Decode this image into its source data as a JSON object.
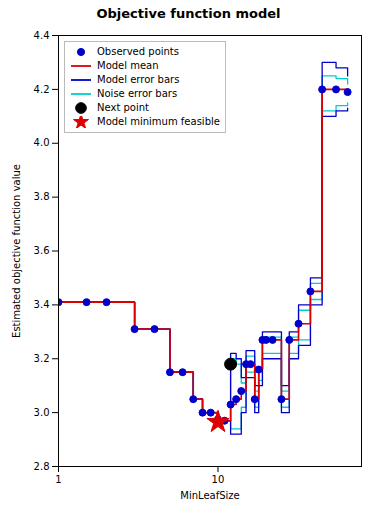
{
  "chart_data": {
    "type": "line",
    "title": "Objective function model",
    "xlabel": "MinLeafSize",
    "ylabel": "Estimated objective function value",
    "log": "x",
    "xlim": [
      1,
      79.43282347242815
    ],
    "xticks": [
      1,
      10
    ],
    "ylim": [
      2.8,
      4.4
    ],
    "yticks": [
      2.8,
      {
        "value": 3.0,
        "label": "3.0"
      },
      3.2,
      3.4,
      3.6,
      3.8,
      {
        "value": 4.0,
        "label": "4.0"
      },
      4.2,
      4.4
    ],
    "grid": false,
    "legend": "upper left",
    "series": [
      {
        "name": "Observed points",
        "type": "scatter",
        "marker": "circle",
        "color": "#0000cc",
        "x": [
          1,
          1.5,
          2,
          3,
          4,
          5,
          6,
          7,
          8,
          9,
          10,
          11,
          12,
          13,
          14,
          15,
          16,
          17,
          18,
          19,
          20,
          22,
          25,
          28,
          32,
          38,
          45,
          55,
          65
        ],
        "values": [
          3.41,
          3.41,
          3.41,
          3.31,
          3.31,
          3.15,
          3.15,
          3.05,
          3.0,
          3.0,
          2.975,
          2.97,
          3.03,
          3.05,
          3.08,
          3.18,
          3.18,
          3.05,
          3.16,
          3.27,
          3.27,
          3.27,
          3.05,
          3.27,
          3.33,
          3.45,
          4.2,
          4.2,
          4.19
        ]
      },
      {
        "name": "Model mean",
        "type": "step",
        "color": "#dd0000",
        "x": [
          1,
          2,
          3,
          4,
          5,
          6,
          7,
          8,
          9,
          10,
          11,
          12,
          13,
          14,
          15,
          16,
          17,
          18,
          19,
          20,
          22,
          25,
          28,
          32,
          38,
          45,
          55,
          65
        ],
        "values": [
          3.41,
          3.41,
          3.31,
          3.31,
          3.15,
          3.15,
          3.05,
          3.0,
          3.0,
          2.975,
          2.97,
          3.03,
          3.05,
          3.08,
          3.18,
          3.18,
          3.05,
          3.16,
          3.27,
          3.27,
          3.27,
          3.05,
          3.27,
          3.33,
          3.45,
          4.2,
          4.2,
          4.19
        ]
      },
      {
        "name": "Model error bars",
        "type": "step",
        "color": "#0000cc",
        "x": [
          1,
          2,
          3,
          4,
          5,
          6,
          7,
          8,
          9,
          10,
          11,
          12,
          13,
          14,
          15,
          16,
          17,
          18,
          19,
          20,
          22,
          25,
          28,
          32,
          38,
          45,
          55,
          65
        ],
        "upper": [
          3.41,
          3.41,
          3.31,
          3.31,
          3.15,
          3.15,
          3.05,
          3.0,
          3.0,
          2.975,
          2.97,
          3.22,
          3.2,
          3.13,
          3.23,
          3.23,
          3.1,
          3.16,
          3.3,
          3.3,
          3.3,
          3.1,
          3.3,
          3.4,
          3.5,
          4.3,
          4.28,
          4.25
        ],
        "lower": [
          3.41,
          3.41,
          3.31,
          3.31,
          3.15,
          3.15,
          3.05,
          3.0,
          3.0,
          2.975,
          2.97,
          2.92,
          2.92,
          3.0,
          3.13,
          3.13,
          3.0,
          3.1,
          3.2,
          3.2,
          3.2,
          3.0,
          3.2,
          3.25,
          3.4,
          4.1,
          4.12,
          4.13
        ]
      },
      {
        "name": "Noise error bars",
        "type": "step",
        "color": "#00cccc",
        "x": [
          1,
          2,
          3,
          4,
          5,
          6,
          7,
          8,
          9,
          10,
          11,
          12,
          13,
          14,
          15,
          16,
          17,
          18,
          19,
          20,
          22,
          25,
          28,
          32,
          38,
          45,
          55,
          65
        ],
        "upper": [
          3.41,
          3.41,
          3.31,
          3.31,
          3.15,
          3.15,
          3.05,
          3.0,
          3.0,
          2.975,
          2.97,
          3.2,
          3.18,
          3.11,
          3.21,
          3.21,
          3.08,
          3.16,
          3.28,
          3.28,
          3.28,
          3.08,
          3.28,
          3.38,
          3.48,
          4.25,
          4.24,
          4.22
        ],
        "lower": [
          3.41,
          3.41,
          3.31,
          3.31,
          3.15,
          3.15,
          3.05,
          3.0,
          3.0,
          2.975,
          2.97,
          2.94,
          2.94,
          3.02,
          3.15,
          3.15,
          3.02,
          3.12,
          3.22,
          3.22,
          3.22,
          3.02,
          3.22,
          3.27,
          3.42,
          4.12,
          4.14,
          4.15
        ]
      },
      {
        "name": "Next point",
        "type": "scatter",
        "marker": "circle",
        "color": "#000000",
        "x": [
          12
        ],
        "values": [
          3.18
        ]
      },
      {
        "name": "Model minimum feasible",
        "type": "scatter",
        "marker": "star",
        "color": "#dd0000",
        "x": [
          10
        ],
        "values": [
          2.965
        ]
      }
    ]
  }
}
